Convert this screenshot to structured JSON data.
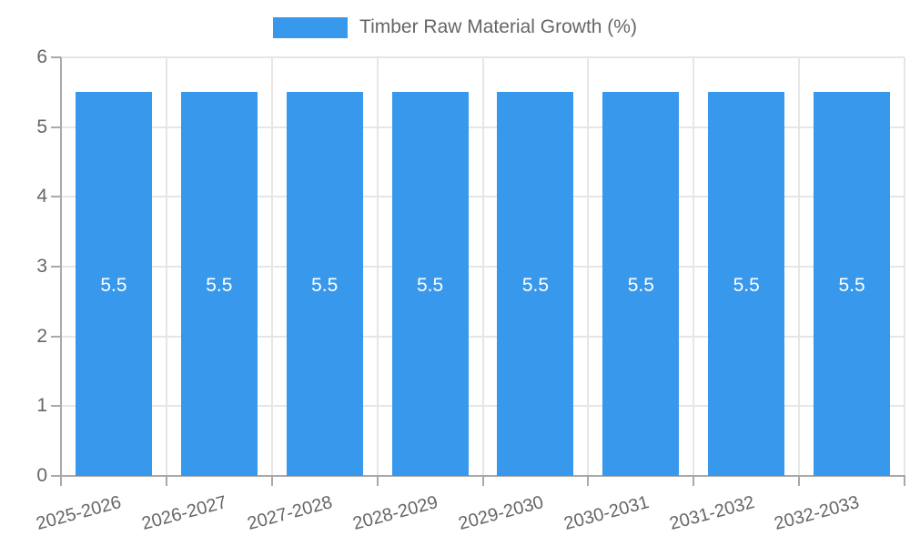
{
  "legend": {
    "label": "Timber Raw Material Growth (%)"
  },
  "colors": {
    "bar": "#3898EC",
    "grid": "#E6E6E6",
    "axis": "#A9A9A9",
    "tick": "#A9A9A9",
    "tick_text": "#666666",
    "bar_label": "#FFFFFF",
    "legend_text": "#666666",
    "background": "#FFFFFF"
  },
  "chart_data": {
    "type": "bar",
    "title": "Timber Raw Material Growth (%)",
    "categories": [
      "2025-2026",
      "2026-2027",
      "2027-2028",
      "2028-2029",
      "2029-2030",
      "2030-2031",
      "2031-2032",
      "2032-2033"
    ],
    "values": [
      5.5,
      5.5,
      5.5,
      5.5,
      5.5,
      5.5,
      5.5,
      5.5
    ],
    "bar_value_labels": [
      "5.5",
      "5.5",
      "5.5",
      "5.5",
      "5.5",
      "5.5",
      "5.5",
      "5.5"
    ],
    "xlabel": "",
    "ylabel": "",
    "ylim": [
      0,
      6
    ],
    "yticks": [
      0,
      1,
      2,
      3,
      4,
      5,
      6
    ],
    "grid": true,
    "legend_position": "top",
    "x_label_rotation_deg": -15
  }
}
